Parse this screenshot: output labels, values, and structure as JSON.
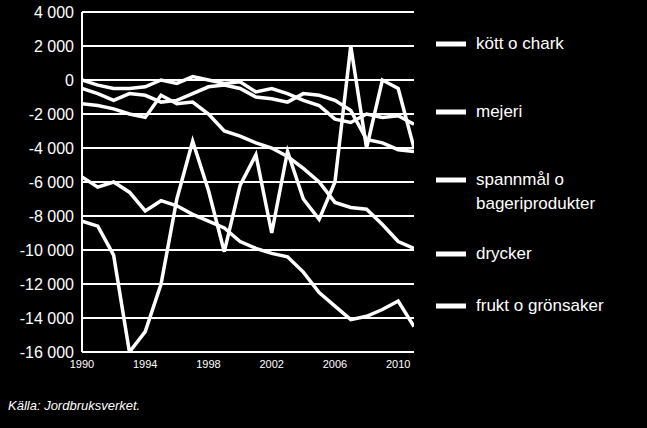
{
  "chart_data": {
    "type": "line",
    "annotation": "Källa: Jordbruksverket.",
    "x": [
      1990,
      1991,
      1992,
      1993,
      1994,
      1995,
      1996,
      1997,
      1998,
      1999,
      2000,
      2001,
      2002,
      2003,
      2004,
      2005,
      2006,
      2007,
      2008,
      2009,
      2010,
      2011
    ],
    "xlim": [
      1990,
      2011
    ],
    "xticks": [
      1990,
      1994,
      1998,
      2002,
      2006,
      2010
    ],
    "ylim": [
      -16000,
      4000
    ],
    "yticks": [
      {
        "value": -16000,
        "label": "-16 000"
      },
      {
        "value": -14000,
        "label": "-14 000"
      },
      {
        "value": -12000,
        "label": "-12 000"
      },
      {
        "value": -10000,
        "label": "-10 000"
      },
      {
        "value": -8000,
        "label": "-8 000"
      },
      {
        "value": -6000,
        "label": "-6 000"
      },
      {
        "value": -4000,
        "label": "-4 000"
      },
      {
        "value": -2000,
        "label": "-2 000"
      },
      0,
      {
        "value": 2000,
        "label": "2 000"
      },
      {
        "value": 4000,
        "label": "4 000"
      }
    ],
    "grid": true,
    "legend": "right",
    "series": [
      {
        "name": "kött o chark",
        "color": "#ffffff",
        "values": [
          -8300,
          -8600,
          -10300,
          -16000,
          -14800,
          -12000,
          -7000,
          -3600,
          -6500,
          -10100,
          -6200,
          -4400,
          -9000,
          -4200,
          -7000,
          -8200,
          -6000,
          2000,
          -4000,
          0,
          -500,
          -4000
        ]
      },
      {
        "name": "mejeri",
        "color": "#ffffff",
        "values": [
          0,
          -300,
          -500,
          -500,
          -400,
          0,
          -200,
          200,
          0,
          -200,
          -100,
          -700,
          -500,
          -800,
          -1200,
          -1500,
          -2300,
          -2500,
          -2000,
          -2200,
          -2100,
          -2600
        ]
      },
      {
        "name": "spannmål o bageriprodukter",
        "color": "#ffffff",
        "values": [
          -500,
          -800,
          -1200,
          -800,
          -900,
          -1300,
          -1200,
          -800,
          -400,
          -300,
          -500,
          -1000,
          -1100,
          -1300,
          -800,
          -900,
          -1200,
          -1800,
          -3500,
          -3700,
          -4100,
          -4200
        ]
      },
      {
        "name": "drycker",
        "color": "#ffffff",
        "values": [
          -1400,
          -1500,
          -1700,
          -2000,
          -2200,
          -900,
          -1400,
          -1300,
          -2000,
          -3000,
          -3300,
          -3700,
          -4000,
          -4500,
          -5200,
          -6000,
          -7200,
          -7500,
          -7600,
          -8500,
          -9500,
          -9900
        ]
      },
      {
        "name": "frukt o grönsaker",
        "color": "#ffffff",
        "values": [
          -5700,
          -6300,
          -6000,
          -6600,
          -7700,
          -7100,
          -7400,
          -7900,
          -8300,
          -8700,
          -9500,
          -9900,
          -10200,
          -10400,
          -11300,
          -12500,
          -13300,
          -14100,
          -13900,
          -13500,
          -13000,
          -14500
        ]
      }
    ]
  }
}
